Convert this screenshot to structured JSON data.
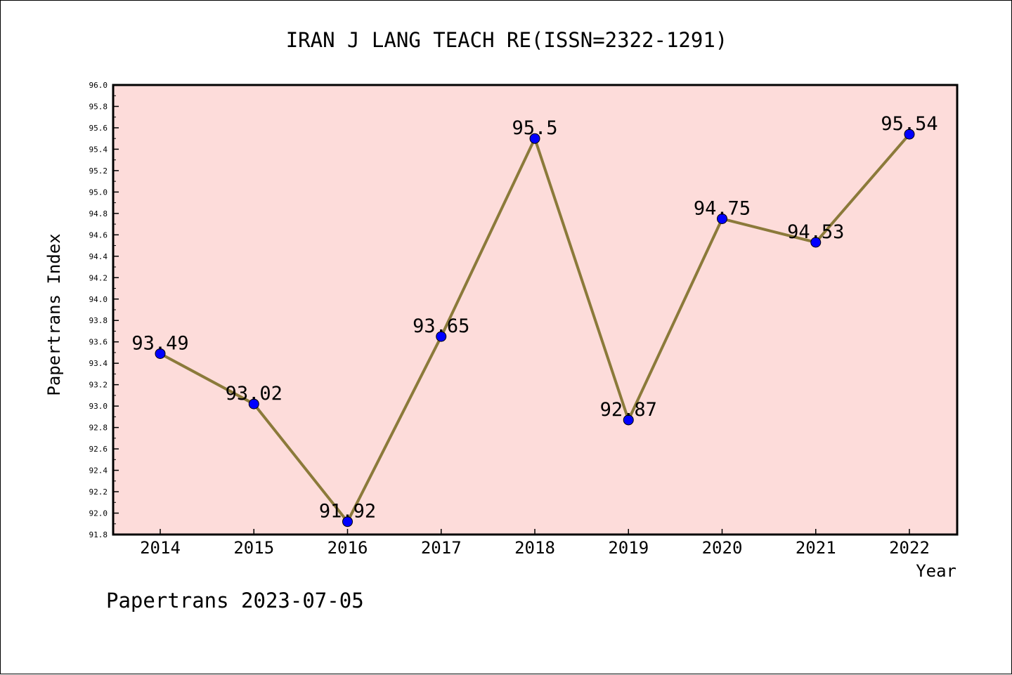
{
  "chart_data": {
    "type": "line",
    "title": "IRAN J LANG TEACH RE(ISSN=2322-1291)",
    "xlabel": "Year",
    "ylabel": "Papertrans Index",
    "categories": [
      "2014",
      "2015",
      "2016",
      "2017",
      "2018",
      "2019",
      "2020",
      "2021",
      "2022"
    ],
    "series": [
      {
        "values": [
          93.49,
          93.02,
          91.92,
          93.65,
          95.5,
          92.87,
          94.75,
          94.53,
          95.54
        ]
      }
    ],
    "data_labels": [
      "93.49",
      "93.02",
      "91.92",
      "93.65",
      "95.5",
      "92.87",
      "94.75",
      "94.53",
      "95.54"
    ],
    "ylim": [
      91.8,
      96.0
    ],
    "yticks": [
      "91.8",
      "92.0",
      "92.2",
      "92.4",
      "92.6",
      "92.8",
      "93.0",
      "93.2",
      "93.4",
      "93.6",
      "93.8",
      "94.0",
      "94.2",
      "94.4",
      "94.6",
      "94.8",
      "95.0",
      "95.2",
      "95.4",
      "95.6",
      "95.8",
      "96.0"
    ],
    "grid": false,
    "legend": "none",
    "colors": {
      "plot_background": "#fddcda",
      "line": "#8b7a3a",
      "marker": "#0000ff",
      "axes": "#000000"
    },
    "footer": "Papertrans 2023-07-05"
  }
}
